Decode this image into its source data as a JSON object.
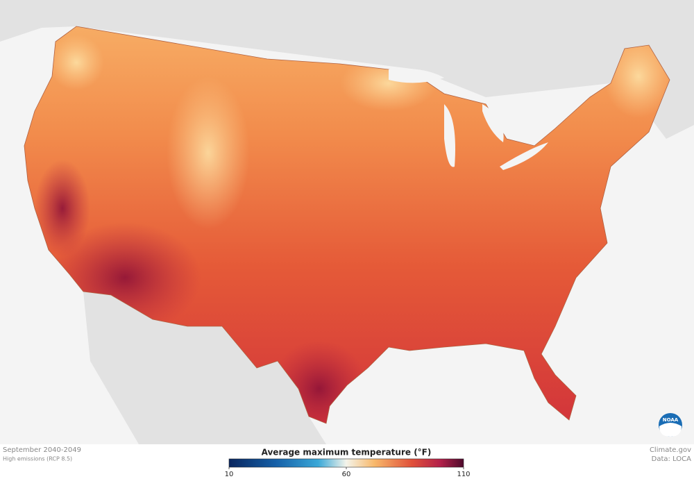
{
  "caption": {
    "period": "September 2040-2049",
    "scenario": "High emissions (RCP 8.5)"
  },
  "legend": {
    "title": "Average maximum temperature (°F)",
    "range": [
      10,
      110
    ],
    "ticks": [
      10,
      60,
      110
    ]
  },
  "credits": {
    "site": "Climate.gov",
    "data": "Data: LOCA"
  },
  "logo": "NOAA"
}
